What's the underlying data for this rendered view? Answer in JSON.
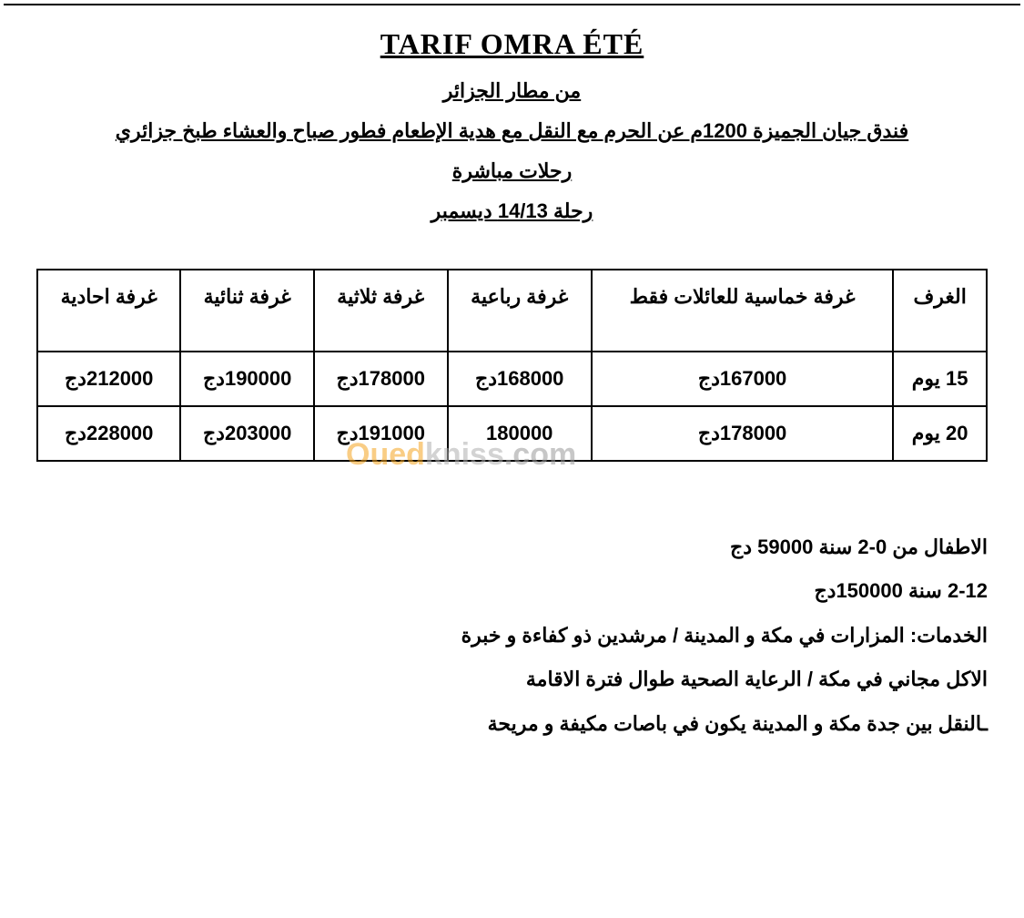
{
  "title": "TARIF OMRA ÉTÉ",
  "subtitles": {
    "line1": "من مطار الجزائر",
    "line2": "فندق جيان الجميزة 1200م عن الحرم مع النقل مع هدية الإطعام فطور صباح والعشاء طبخ جزائري",
    "line3": "رحلات مباشرة",
    "line4": "رحلة 14/13 ديسمبر"
  },
  "table": {
    "columns": [
      "الغرف",
      "غرفة خماسية للعائلات فقط",
      "غرفة رباعية",
      "غرفة ثلاثية",
      "غرفة ثنائية",
      "غرفة احادية"
    ],
    "rows": [
      {
        "label": "15 يوم",
        "cells": [
          "167000دج",
          "168000دج",
          "178000دج",
          "190000دج",
          "212000دج"
        ]
      },
      {
        "label": "20 يوم",
        "cells": [
          "178000دج",
          "180000",
          "191000دج",
          "203000دج",
          "228000دج"
        ]
      }
    ]
  },
  "notes": {
    "line1": "الاطفال من 0-2 سنة 59000 دج",
    "line2": "2-12 سنة 150000دج",
    "line3": "الخدمات: المزارات في مكة و المدينة / مرشدين ذو كفاءة و خبرة",
    "line4": "الاكل مجاني في مكة / الرعاية الصحية طوال فترة الاقامة",
    "line5": "ـالنقل بين جدة مكة و المدينة يكون في باصات مكيفة و مريحة"
  },
  "watermark": {
    "part1": "Oued",
    "part2": "kniss",
    "part3": ".com"
  },
  "styles": {
    "background_color": "#ffffff",
    "text_color": "#000000",
    "border_color": "#000000",
    "title_fontsize": 32,
    "subtitle_fontsize": 22,
    "table_fontsize": 22,
    "notes_fontsize": 22,
    "watermark_colors": [
      "#f5a623",
      "#b0b0b0",
      "#9a9a9a"
    ]
  }
}
